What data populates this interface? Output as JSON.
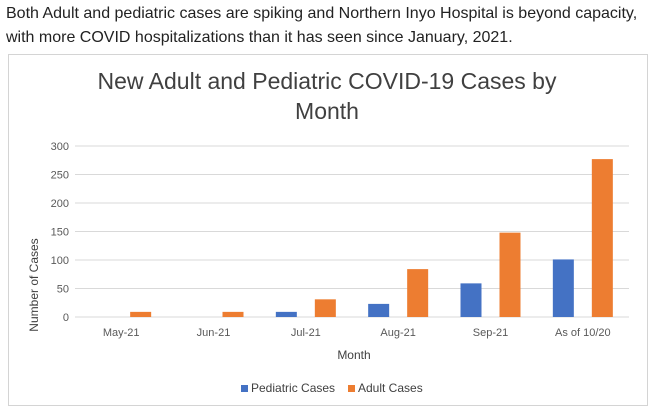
{
  "intro_text": "Both Adult and pediatric cases are spiking and Northern Inyo Hospital is beyond capacity, with more COVID hospitalizations than it has seen since January, 2021.",
  "colors": {
    "pediatric": "#4472c4",
    "adult": "#ed7d31",
    "grid": "#d9d9d9"
  },
  "chart_data": {
    "type": "bar",
    "title_lines": [
      "New Adult and Pediatric COVID-19 Cases by",
      "Month"
    ],
    "xlabel": "Month",
    "ylabel": "Number of Cases",
    "ylim": [
      0,
      300
    ],
    "yticks": [
      0,
      50,
      100,
      150,
      200,
      250,
      300
    ],
    "grid": true,
    "legend_position": "bottom",
    "categories": [
      "May-21",
      "Jun-21",
      "Jul-21",
      "Aug-21",
      "Sep-21",
      "As of 10/20"
    ],
    "series": [
      {
        "name": "Pediatric Cases",
        "color": "#4472c4",
        "values": [
          0,
          0,
          9,
          23,
          59,
          101
        ]
      },
      {
        "name": "Adult Cases",
        "color": "#ed7d31",
        "values": [
          9,
          9,
          31,
          84,
          148,
          277
        ]
      }
    ]
  }
}
